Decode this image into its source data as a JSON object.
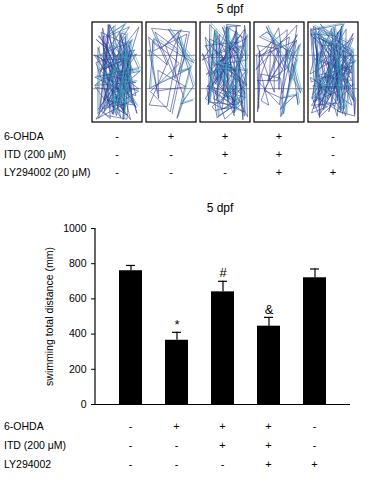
{
  "track_panel": {
    "title": "5 dpf",
    "conditions": [
      {
        "label": "6-OHDA",
        "values": [
          "-",
          "+",
          "+",
          "+",
          "-"
        ]
      },
      {
        "label": "ITD (200 μM)",
        "values": [
          "-",
          "-",
          "+",
          "+",
          "-"
        ]
      },
      {
        "label": "LY294002 (20 μM)",
        "values": [
          "-",
          "-",
          "-",
          "+",
          "+"
        ]
      }
    ]
  },
  "chart_data": {
    "type": "bar",
    "title": "5 dpf",
    "y_label": "swimming total distance (mm)",
    "categories": [
      null,
      null,
      null,
      null,
      null
    ],
    "values": [
      760,
      365,
      640,
      445,
      720
    ],
    "errors": [
      30,
      45,
      60,
      50,
      50
    ],
    "annotations": [
      null,
      "*",
      "#",
      "&",
      null
    ],
    "color": "#000000",
    "ylim": [
      0,
      1000
    ],
    "yticks": [
      0,
      200,
      400,
      600,
      800,
      1000
    ],
    "grid": false,
    "conditions": [
      {
        "label": "6-OHDA",
        "values": [
          "-",
          "+",
          "+",
          "+",
          "-"
        ]
      },
      {
        "label": "ITD (200 μM)",
        "values": [
          "-",
          "-",
          "+",
          "+",
          "-"
        ]
      },
      {
        "label": "LY294002",
        "values": [
          "-",
          "-",
          "-",
          "+",
          "+"
        ]
      }
    ]
  }
}
